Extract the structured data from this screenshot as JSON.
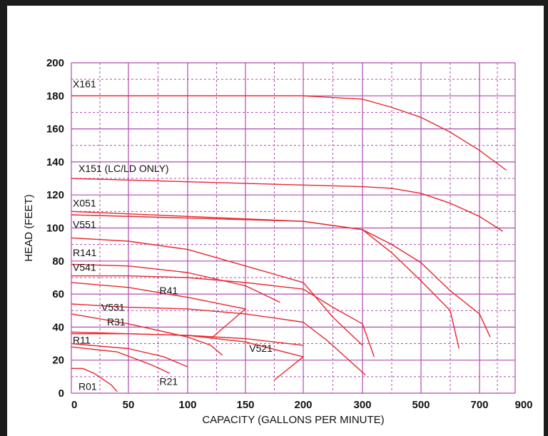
{
  "chart_data": {
    "type": "line",
    "xlabel": "CAPACITY (GALLONS PER MINUTE)",
    "ylabel": "HEAD (FEET)",
    "x_ticks": [
      "0",
      "50",
      "100",
      "150",
      "200",
      "300",
      "500",
      "700",
      "900"
    ],
    "y_ticks": [
      "0",
      "20",
      "40",
      "60",
      "80",
      "100",
      "120",
      "140",
      "160",
      "180",
      "200"
    ],
    "ylim": [
      0,
      200
    ],
    "grid": true,
    "colors": {
      "curve": "#e8262d",
      "grid": "#b04ab0",
      "text": "#111111"
    },
    "series": [
      {
        "name": "X161",
        "label_at": [
          0,
          185
        ],
        "points": [
          [
            0,
            180
          ],
          [
            100,
            180
          ],
          [
            200,
            180
          ],
          [
            300,
            178
          ],
          [
            400,
            173
          ],
          [
            500,
            167
          ],
          [
            600,
            158
          ],
          [
            700,
            147
          ],
          [
            850,
            135
          ]
        ]
      },
      {
        "name": "X151 (LC/LD ONLY)",
        "label_at": [
          5,
          134
        ],
        "points": [
          [
            0,
            130
          ],
          [
            100,
            128
          ],
          [
            200,
            126
          ],
          [
            300,
            125
          ],
          [
            400,
            124
          ],
          [
            500,
            121
          ],
          [
            600,
            115
          ],
          [
            700,
            107
          ],
          [
            830,
            98
          ]
        ]
      },
      {
        "name": "X051",
        "label_at": [
          0,
          113
        ],
        "points": [
          [
            0,
            110
          ],
          [
            100,
            107
          ],
          [
            200,
            104
          ],
          [
            300,
            99
          ],
          [
            400,
            90
          ],
          [
            500,
            79
          ],
          [
            600,
            62
          ],
          [
            700,
            48
          ],
          [
            760,
            34
          ]
        ]
      },
      {
        "name": "V551",
        "label_at": [
          0,
          100
        ],
        "points": [
          [
            0,
            108
          ],
          [
            100,
            106
          ],
          [
            200,
            104
          ],
          [
            300,
            99
          ],
          [
            400,
            85
          ],
          [
            500,
            68
          ],
          [
            600,
            50
          ],
          [
            630,
            27
          ]
        ]
      },
      {
        "name": "",
        "points": [
          [
            0,
            94
          ],
          [
            50,
            92
          ],
          [
            100,
            87
          ],
          [
            150,
            77
          ],
          [
            200,
            67
          ],
          [
            250,
            46
          ],
          [
            300,
            29
          ]
        ]
      },
      {
        "name": "R141",
        "label_at": [
          0,
          83
        ],
        "points": [
          [
            0,
            78
          ],
          [
            50,
            77
          ],
          [
            100,
            73
          ],
          [
            150,
            65
          ],
          [
            180,
            55
          ]
        ]
      },
      {
        "name": "V541",
        "label_at": [
          0,
          74
        ],
        "points": [
          [
            0,
            71
          ],
          [
            50,
            71
          ],
          [
            100,
            70
          ],
          [
            150,
            67
          ],
          [
            200,
            63
          ],
          [
            250,
            52
          ],
          [
            300,
            42
          ],
          [
            340,
            22
          ]
        ]
      },
      {
        "name": "R41",
        "label_at": [
          75,
          60
        ],
        "points": [
          [
            0,
            67
          ],
          [
            50,
            64
          ],
          [
            100,
            58
          ],
          [
            150,
            51
          ],
          [
            120,
            33
          ]
        ]
      },
      {
        "name": "V531",
        "label_at": [
          25,
          50
        ],
        "points": [
          [
            0,
            54
          ],
          [
            50,
            52
          ],
          [
            100,
            51
          ],
          [
            150,
            48
          ],
          [
            200,
            43
          ],
          [
            240,
            32
          ],
          [
            310,
            11
          ]
        ]
      },
      {
        "name": "R31",
        "label_at": [
          30,
          41
        ],
        "points": [
          [
            0,
            48
          ],
          [
            50,
            42
          ],
          [
            100,
            34
          ],
          [
            120,
            29
          ],
          [
            130,
            23
          ]
        ]
      },
      {
        "name": "",
        "points": [
          [
            0,
            37
          ],
          [
            50,
            36
          ],
          [
            100,
            35
          ],
          [
            150,
            31
          ],
          [
            200,
            22
          ],
          [
            175,
            8
          ]
        ]
      },
      {
        "name": "V521",
        "label_at": [
          152,
          25
        ],
        "points": [
          [
            0,
            36
          ],
          [
            50,
            36
          ],
          [
            100,
            35
          ],
          [
            150,
            33
          ],
          [
            200,
            29
          ]
        ]
      },
      {
        "name": "R11",
        "label_at": [
          0,
          30
        ],
        "points": [
          [
            0,
            30
          ],
          [
            50,
            27
          ],
          [
            80,
            22
          ],
          [
            100,
            16
          ]
        ]
      },
      {
        "name": "R21",
        "label_at": [
          75,
          5
        ],
        "points": [
          [
            0,
            28
          ],
          [
            40,
            25
          ],
          [
            70,
            17
          ],
          [
            85,
            12
          ]
        ]
      },
      {
        "name": "R01",
        "label_at": [
          5,
          2
        ],
        "points": [
          [
            0,
            15
          ],
          [
            10,
            15
          ],
          [
            20,
            12
          ],
          [
            35,
            5
          ],
          [
            40,
            1
          ]
        ]
      }
    ]
  }
}
